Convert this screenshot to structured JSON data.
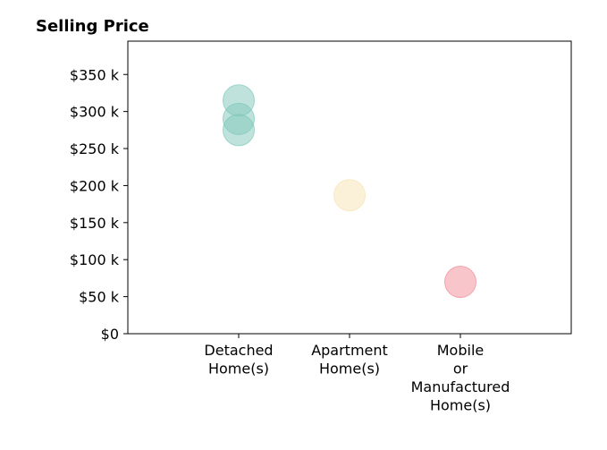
{
  "chart_data": {
    "type": "scatter",
    "title": "Selling Price",
    "xlabel": "",
    "ylabel": "",
    "categories": [
      [
        "Detached",
        "Home(s)"
      ],
      [
        "Apartment",
        "Home(s)"
      ],
      [
        "Mobile",
        "or",
        "Manufactured",
        "Home(s)"
      ]
    ],
    "xlim": [
      -1,
      3
    ],
    "ylim": [
      0,
      395000
    ],
    "y_ticks": [
      0,
      50000,
      100000,
      150000,
      200000,
      250000,
      300000,
      350000
    ],
    "y_tick_labels": [
      "$0",
      "$50 k",
      "$100 k",
      "$150 k",
      "$200 k",
      "$250 k",
      "$300 k",
      "$350 k"
    ],
    "grid": false,
    "series": [
      {
        "category_index": 0,
        "color": "#7fc7b9",
        "values": [
          315000,
          290000,
          275000
        ]
      },
      {
        "category_index": 1,
        "color": "#f7e3b3",
        "values": [
          187000
        ]
      },
      {
        "category_index": 2,
        "color": "#f08c96",
        "values": [
          70000
        ]
      }
    ]
  }
}
